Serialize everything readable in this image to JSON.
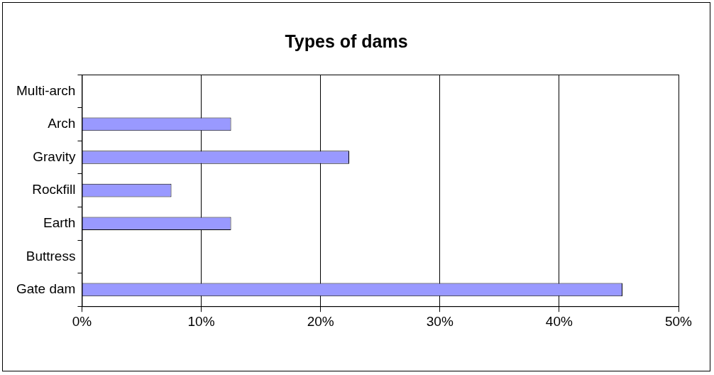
{
  "chart_data": {
    "type": "bar",
    "title": "Types of dams",
    "orientation": "horizontal",
    "categories": [
      "Multi-arch",
      "Arch",
      "Gravity",
      "Rockfill",
      "Earth",
      "Buttress",
      "Gate dam"
    ],
    "values": [
      0,
      12.5,
      22.4,
      7.5,
      12.5,
      0,
      45.3
    ],
    "color": "#9999ff",
    "xlim": [
      0,
      50
    ],
    "xticks": [
      {
        "value": 0,
        "label": "0%"
      },
      {
        "value": 10,
        "label": "10%"
      },
      {
        "value": 20,
        "label": "20%"
      },
      {
        "value": 30,
        "label": "30%"
      },
      {
        "value": 40,
        "label": "40%"
      },
      {
        "value": 50,
        "label": "50%"
      }
    ],
    "grid": "x",
    "legend": false
  }
}
